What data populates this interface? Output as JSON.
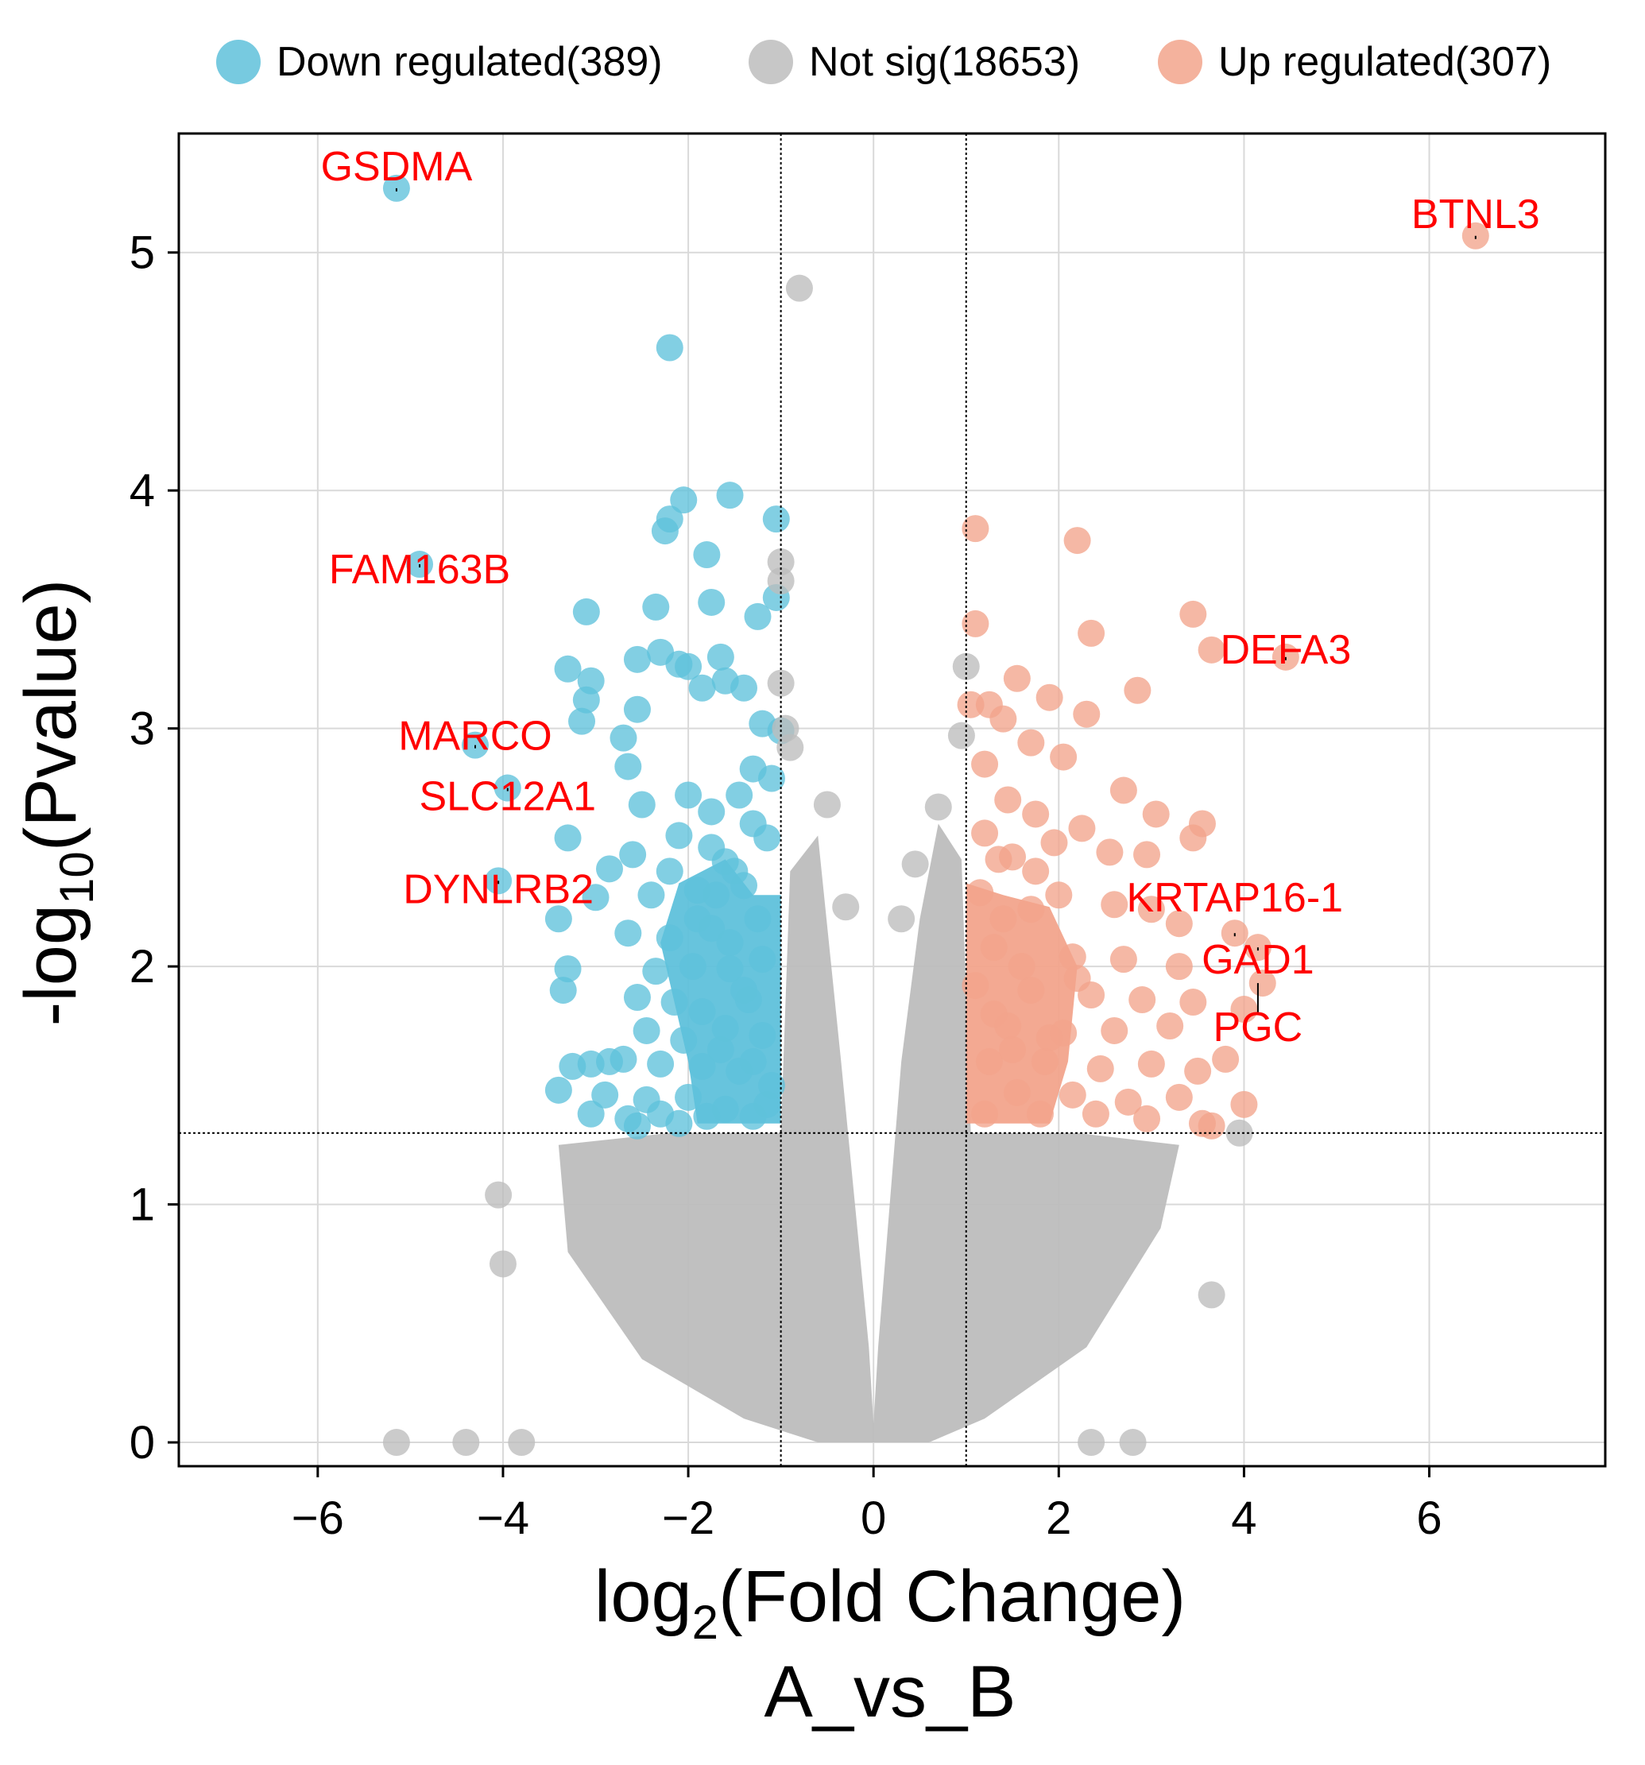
{
  "chart_data": {
    "type": "scatter",
    "title": "",
    "xlabel_base": "log",
    "xlabel_sub": "2",
    "xlabel_rest": "(Fold Change)",
    "xlabel_line2": "A_vs_B",
    "ylabel_base": "-log",
    "ylabel_sub": "10",
    "ylabel_rest": "(Pvalue)",
    "xlim": [
      -7.5,
      7.9
    ],
    "ylim": [
      -0.1,
      5.5
    ],
    "xticks": [
      -6,
      -4,
      -2,
      0,
      2,
      4,
      6
    ],
    "xtick_labels": [
      "−6",
      "−4",
      "−2",
      "0",
      "2",
      "4",
      "6"
    ],
    "yticks": [
      0,
      1,
      2,
      3,
      4,
      5
    ],
    "ytick_labels": [
      "0",
      "1",
      "2",
      "3",
      "4",
      "5"
    ],
    "grid": true,
    "thresholds": {
      "x": [
        -1,
        1
      ],
      "y": 1.3
    },
    "legend_position": "top",
    "legend": [
      {
        "label": "Down regulated(389)",
        "color": "#5fc1db"
      },
      {
        "label": "Not sig(18653)",
        "color": "#bdbdbd"
      },
      {
        "label": "Up regulated(307)",
        "color": "#f2a48c"
      }
    ],
    "colors": {
      "down": "#5fc1db",
      "notsig": "#bdbdbd",
      "up": "#f2a48c",
      "label_text": "#ff0000",
      "threshold_line": "#000000",
      "grid": "#d9d9d9"
    },
    "series": [
      {
        "name": "Down regulated(389)",
        "points": [
          [
            -5.15,
            5.27
          ],
          [
            -4.9,
            3.69
          ],
          [
            -4.3,
            2.93
          ],
          [
            -3.95,
            2.75
          ],
          [
            -4.05,
            2.36
          ],
          [
            -2.2,
            4.6
          ],
          [
            -2.05,
            3.96
          ],
          [
            -1.55,
            3.98
          ],
          [
            -2.2,
            3.88
          ],
          [
            -2.25,
            3.83
          ],
          [
            -1.8,
            3.73
          ],
          [
            -1.05,
            3.88
          ],
          [
            -1.25,
            3.47
          ],
          [
            -1.05,
            3.55
          ],
          [
            -3.1,
            3.49
          ],
          [
            -2.35,
            3.51
          ],
          [
            -1.75,
            3.53
          ],
          [
            -2.3,
            3.32
          ],
          [
            -2.1,
            3.27
          ],
          [
            -1.65,
            3.3
          ],
          [
            -2.55,
            3.29
          ],
          [
            -3.3,
            3.25
          ],
          [
            -3.05,
            3.2
          ],
          [
            -3.1,
            3.12
          ],
          [
            -1.6,
            3.2
          ],
          [
            -1.4,
            3.17
          ],
          [
            -2.0,
            3.26
          ],
          [
            -1.85,
            3.17
          ],
          [
            -2.55,
            3.08
          ],
          [
            -3.15,
            3.03
          ],
          [
            -2.7,
            2.96
          ],
          [
            -1.2,
            3.02
          ],
          [
            -1.0,
            2.99
          ],
          [
            -2.65,
            2.84
          ],
          [
            -1.3,
            2.83
          ],
          [
            -2.5,
            2.68
          ],
          [
            -2.0,
            2.72
          ],
          [
            -1.45,
            2.72
          ],
          [
            -1.1,
            2.79
          ],
          [
            -1.75,
            2.65
          ],
          [
            -3.3,
            2.54
          ],
          [
            -2.6,
            2.47
          ],
          [
            -2.1,
            2.55
          ],
          [
            -1.6,
            2.44
          ],
          [
            -1.15,
            2.54
          ],
          [
            -2.85,
            2.41
          ],
          [
            -3.0,
            2.29
          ],
          [
            -2.4,
            2.3
          ],
          [
            -1.9,
            2.32
          ],
          [
            -1.4,
            2.34
          ],
          [
            -3.4,
            2.2
          ],
          [
            -2.65,
            2.14
          ],
          [
            -2.2,
            2.12
          ],
          [
            -1.75,
            2.16
          ],
          [
            -1.25,
            2.2
          ],
          [
            -3.3,
            1.99
          ],
          [
            -2.35,
            1.98
          ],
          [
            -1.95,
            2.0
          ],
          [
            -1.55,
            1.99
          ],
          [
            -1.2,
            2.03
          ],
          [
            -3.35,
            1.9
          ],
          [
            -2.55,
            1.87
          ],
          [
            -2.15,
            1.85
          ],
          [
            -1.85,
            1.81
          ],
          [
            -1.35,
            1.86
          ],
          [
            -2.45,
            1.73
          ],
          [
            -2.05,
            1.69
          ],
          [
            -1.6,
            1.74
          ],
          [
            -1.2,
            1.71
          ],
          [
            -3.25,
            1.58
          ],
          [
            -3.05,
            1.59
          ],
          [
            -2.85,
            1.6
          ],
          [
            -2.7,
            1.61
          ],
          [
            -2.3,
            1.59
          ],
          [
            -1.85,
            1.58
          ],
          [
            -1.45,
            1.56
          ],
          [
            -3.4,
            1.48
          ],
          [
            -2.9,
            1.46
          ],
          [
            -2.45,
            1.44
          ],
          [
            -2.0,
            1.45
          ],
          [
            -1.6,
            1.4
          ],
          [
            -1.15,
            1.42
          ],
          [
            -3.05,
            1.38
          ],
          [
            -2.65,
            1.36
          ],
          [
            -2.3,
            1.38
          ],
          [
            -1.8,
            1.37
          ],
          [
            -1.3,
            1.37
          ],
          [
            -2.55,
            1.33
          ],
          [
            -2.1,
            1.34
          ],
          [
            -1.75,
            2.5
          ],
          [
            -1.55,
            2.1
          ],
          [
            -1.4,
            1.9
          ],
          [
            -1.65,
            1.65
          ],
          [
            -1.3,
            1.6
          ],
          [
            -1.1,
            1.5
          ],
          [
            -1.5,
            2.4
          ],
          [
            -1.3,
            2.6
          ],
          [
            -1.7,
            2.3
          ],
          [
            -1.9,
            2.2
          ],
          [
            -2.2,
            2.4
          ]
        ]
      },
      {
        "name": "Not sig(18653)",
        "points": [
          [
            -0.8,
            4.85
          ],
          [
            -1.0,
            3.7
          ],
          [
            -1.0,
            3.62
          ],
          [
            -1.0,
            3.19
          ],
          [
            -0.95,
            3.0
          ],
          [
            -0.9,
            2.92
          ],
          [
            1.0,
            3.26
          ],
          [
            0.95,
            2.97
          ],
          [
            -4.05,
            1.04
          ],
          [
            -4.0,
            0.75
          ],
          [
            3.95,
            1.3
          ],
          [
            3.65,
            0.62
          ],
          [
            -5.15,
            0.0
          ],
          [
            -4.4,
            0.0
          ],
          [
            -3.8,
            0.0
          ],
          [
            2.35,
            0.0
          ],
          [
            2.8,
            0.0
          ],
          [
            -0.5,
            2.68
          ],
          [
            0.7,
            2.67
          ],
          [
            0.45,
            2.43
          ],
          [
            -0.3,
            2.25
          ],
          [
            0.3,
            2.2
          ]
        ]
      },
      {
        "name": "Up regulated(307)",
        "points": [
          [
            6.5,
            5.07
          ],
          [
            1.1,
            3.84
          ],
          [
            2.2,
            3.79
          ],
          [
            3.45,
            3.48
          ],
          [
            2.35,
            3.4
          ],
          [
            1.1,
            3.44
          ],
          [
            3.65,
            3.33
          ],
          [
            4.45,
            3.3
          ],
          [
            1.55,
            3.21
          ],
          [
            2.85,
            3.16
          ],
          [
            1.9,
            3.13
          ],
          [
            1.25,
            3.1
          ],
          [
            1.4,
            3.04
          ],
          [
            2.3,
            3.06
          ],
          [
            1.05,
            3.1
          ],
          [
            1.7,
            2.94
          ],
          [
            2.05,
            2.88
          ],
          [
            1.2,
            2.85
          ],
          [
            2.7,
            2.74
          ],
          [
            3.05,
            2.64
          ],
          [
            1.45,
            2.7
          ],
          [
            1.75,
            2.64
          ],
          [
            2.25,
            2.58
          ],
          [
            3.55,
            2.6
          ],
          [
            3.45,
            2.54
          ],
          [
            1.2,
            2.56
          ],
          [
            1.95,
            2.52
          ],
          [
            2.55,
            2.48
          ],
          [
            2.95,
            2.47
          ],
          [
            1.5,
            2.46
          ],
          [
            1.15,
            2.31
          ],
          [
            1.7,
            2.24
          ],
          [
            2.0,
            2.3
          ],
          [
            2.6,
            2.26
          ],
          [
            3.0,
            2.24
          ],
          [
            3.3,
            2.18
          ],
          [
            3.9,
            2.14
          ],
          [
            4.15,
            2.08
          ],
          [
            1.3,
            2.08
          ],
          [
            2.15,
            2.04
          ],
          [
            2.7,
            2.03
          ],
          [
            3.3,
            2.0
          ],
          [
            4.2,
            1.93
          ],
          [
            1.1,
            1.92
          ],
          [
            1.7,
            1.9
          ],
          [
            2.35,
            1.88
          ],
          [
            2.9,
            1.86
          ],
          [
            3.45,
            1.85
          ],
          [
            4.0,
            1.82
          ],
          [
            1.45,
            1.75
          ],
          [
            2.05,
            1.72
          ],
          [
            2.6,
            1.73
          ],
          [
            3.2,
            1.75
          ],
          [
            3.8,
            1.61
          ],
          [
            1.25,
            1.6
          ],
          [
            1.85,
            1.6
          ],
          [
            2.45,
            1.57
          ],
          [
            3.0,
            1.59
          ],
          [
            3.5,
            1.56
          ],
          [
            1.55,
            1.47
          ],
          [
            2.15,
            1.46
          ],
          [
            2.75,
            1.43
          ],
          [
            3.3,
            1.45
          ],
          [
            4.0,
            1.42
          ],
          [
            1.2,
            1.38
          ],
          [
            1.8,
            1.38
          ],
          [
            2.4,
            1.38
          ],
          [
            2.95,
            1.36
          ],
          [
            3.55,
            1.34
          ],
          [
            3.65,
            1.33
          ],
          [
            1.4,
            2.2
          ],
          [
            1.6,
            2.0
          ],
          [
            1.3,
            1.8
          ],
          [
            1.5,
            1.65
          ],
          [
            1.9,
            1.7
          ],
          [
            2.2,
            1.95
          ],
          [
            1.75,
            2.4
          ],
          [
            1.35,
            2.45
          ]
        ]
      }
    ],
    "annotations": [
      {
        "text": "GSDMA",
        "x": -5.15,
        "y": 5.27
      },
      {
        "text": "BTNL3",
        "x": 6.5,
        "y": 5.07
      },
      {
        "text": "FAM163B",
        "x": -4.9,
        "y": 3.69
      },
      {
        "text": "DEFA3",
        "x": 4.45,
        "y": 3.3
      },
      {
        "text": "MARCO",
        "x": -4.3,
        "y": 2.93
      },
      {
        "text": "SLC12A1",
        "x": -3.95,
        "y": 2.75
      },
      {
        "text": "DYNLRB2",
        "x": -4.05,
        "y": 2.36
      },
      {
        "text": "KRTAP16-1",
        "x": 3.9,
        "y": 2.14
      },
      {
        "text": "GAD1",
        "x": 4.15,
        "y": 2.08
      },
      {
        "text": "PGC",
        "x": 4.15,
        "y": 1.93
      }
    ]
  }
}
